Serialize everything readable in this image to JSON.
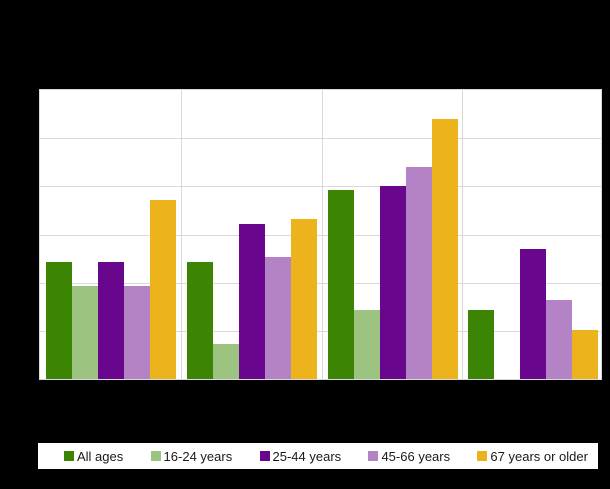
{
  "chart_data": {
    "type": "bar",
    "title": "",
    "categories": [
      "",
      "",
      "",
      ""
    ],
    "series": [
      {
        "name": "All ages",
        "color": "#3c8504",
        "values": [
          2.42,
          2.42,
          3.92,
          1.44
        ]
      },
      {
        "name": "16-24 years",
        "color": "#9cc480",
        "values": [
          1.94,
          0.72,
          1.44,
          0
        ]
      },
      {
        "name": "25-44 years",
        "color": "#68078e",
        "values": [
          2.42,
          3.22,
          4.01,
          2.7
        ]
      },
      {
        "name": "45-66 years",
        "color": "#b383c6",
        "values": [
          1.94,
          2.54,
          4.41,
          1.64
        ]
      },
      {
        "name": "67 years or older",
        "color": "#ecb31d",
        "values": [
          3.72,
          3.32,
          5.39,
          1.02
        ]
      }
    ],
    "ylim": [
      0,
      6
    ],
    "y_gridline_step": 1,
    "grid": "on",
    "legend_position": "bottom",
    "note": "Chart title, y-axis tick labels and x-axis category labels are rendered black-on-black in the screenshot and are not legible. Bar values are expressed in gridline units: one horizontal gridline interval = 1 unit (6 intervals from baseline to plot top). The 16-24 years bar is absent (zero) in the fourth category group."
  },
  "colors": {
    "canvas_background": "#000000",
    "plot_background": "#ffffff",
    "gridline": "#d9d9d9",
    "legend_background": "#ffffff",
    "legend_text": "#1a1a1a"
  }
}
